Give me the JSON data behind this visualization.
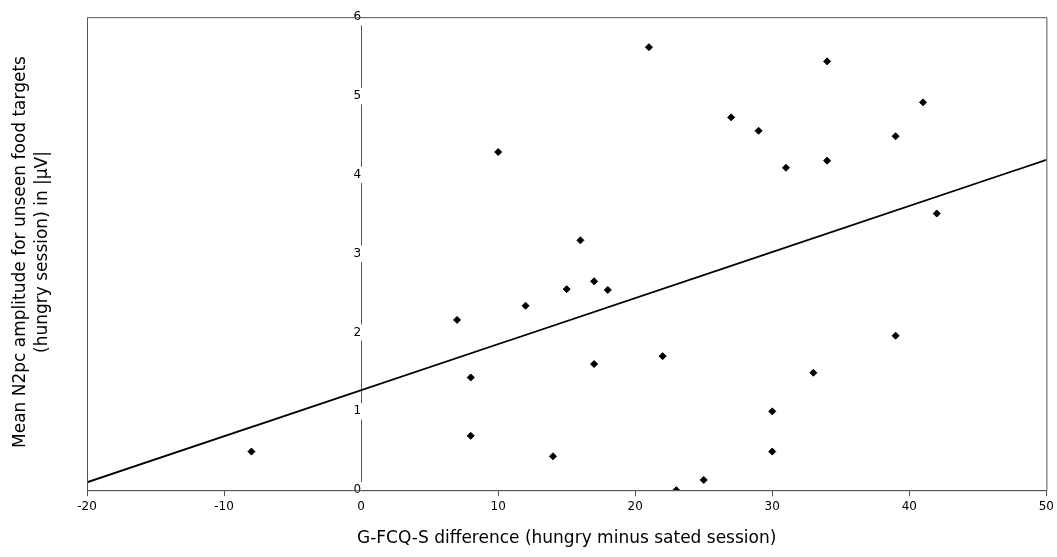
{
  "chart_data": {
    "type": "scatter",
    "xlabel": "G-FCQ-S difference (hungry minus sated session)",
    "ylabel": "Mean N2pc amplitude for unseen food targets\n(hungry session) in |µV|",
    "xlim": [
      -20,
      50
    ],
    "xticks": [
      -20,
      -10,
      0,
      10,
      20,
      30,
      40,
      50
    ],
    "ylim": [
      0,
      6
    ],
    "yticks": [
      0,
      1,
      2,
      3,
      4,
      5,
      6
    ],
    "grid": false,
    "legend": false,
    "series": [
      {
        "marker": "diamond",
        "color": "#000000",
        "x": [
          -8,
          7,
          8,
          8,
          10,
          12,
          14,
          15,
          16,
          17,
          17,
          18,
          21,
          22,
          23,
          25,
          27,
          29,
          30,
          30,
          31,
          33,
          34,
          34,
          39,
          39,
          41,
          42
        ],
        "values": [
          0.49,
          2.16,
          1.43,
          0.69,
          4.29,
          2.34,
          0.43,
          2.55,
          3.17,
          2.65,
          1.6,
          2.54,
          5.62,
          1.7,
          0,
          0.13,
          4.73,
          4.56,
          1.0,
          0.49,
          4.09,
          1.49,
          5.44,
          4.18,
          4.49,
          1.96,
          4.92,
          3.51
        ]
      },
      {
        "type": "line",
        "marker": "none",
        "color": "#000000",
        "x": [
          -20,
          50
        ],
        "values": [
          0.1,
          4.19
        ]
      }
    ]
  }
}
